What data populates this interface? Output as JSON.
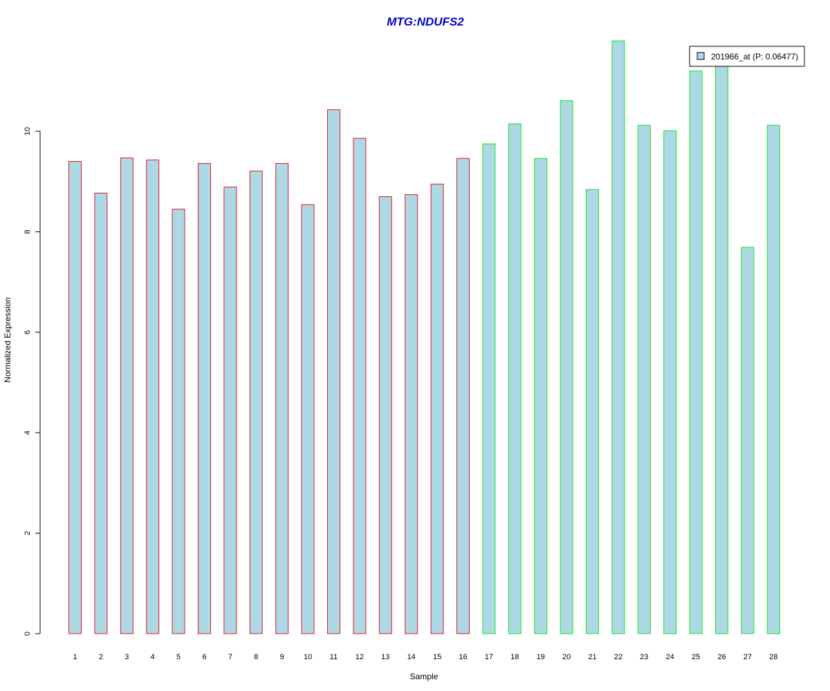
{
  "chart_data": {
    "type": "bar",
    "title": "MTG:NDUFS2",
    "xlabel": "Sample",
    "ylabel": "Normalized Expression",
    "ylim": [
      0,
      11.8
    ],
    "y_ticks": [
      "0",
      "2",
      "4",
      "6",
      "8",
      "10"
    ],
    "categories": [
      "1",
      "2",
      "3",
      "4",
      "5",
      "6",
      "7",
      "8",
      "9",
      "10",
      "11",
      "12",
      "13",
      "14",
      "15",
      "16",
      "17",
      "18",
      "19",
      "20",
      "21",
      "22",
      "23",
      "24",
      "25",
      "26",
      "27",
      "28"
    ],
    "series": [
      {
        "name": "201966_at (P: 0.06477)",
        "values": [
          9.4,
          8.77,
          9.47,
          9.43,
          8.45,
          9.36,
          8.89,
          9.21,
          9.36,
          8.54,
          10.43,
          9.86,
          8.7,
          8.74,
          8.95,
          9.46,
          9.75,
          10.15,
          9.46,
          10.61,
          8.84,
          11.8,
          10.12,
          10.01,
          11.2,
          11.32,
          7.69,
          10.12
        ]
      }
    ],
    "group_borders": [
      "red",
      "red",
      "red",
      "red",
      "red",
      "red",
      "red",
      "red",
      "red",
      "red",
      "red",
      "red",
      "red",
      "red",
      "red",
      "red",
      "green",
      "green",
      "green",
      "green",
      "green",
      "green",
      "green",
      "green",
      "green",
      "green",
      "green",
      "green"
    ],
    "colors": {
      "fill": "#add8e6",
      "group1_border": "#e8141e",
      "group2_border": "#14e614",
      "title": "#0000cc"
    },
    "legend": {
      "position": "top-right",
      "label": "201966_at (P: 0.06477)"
    },
    "grid": false
  }
}
